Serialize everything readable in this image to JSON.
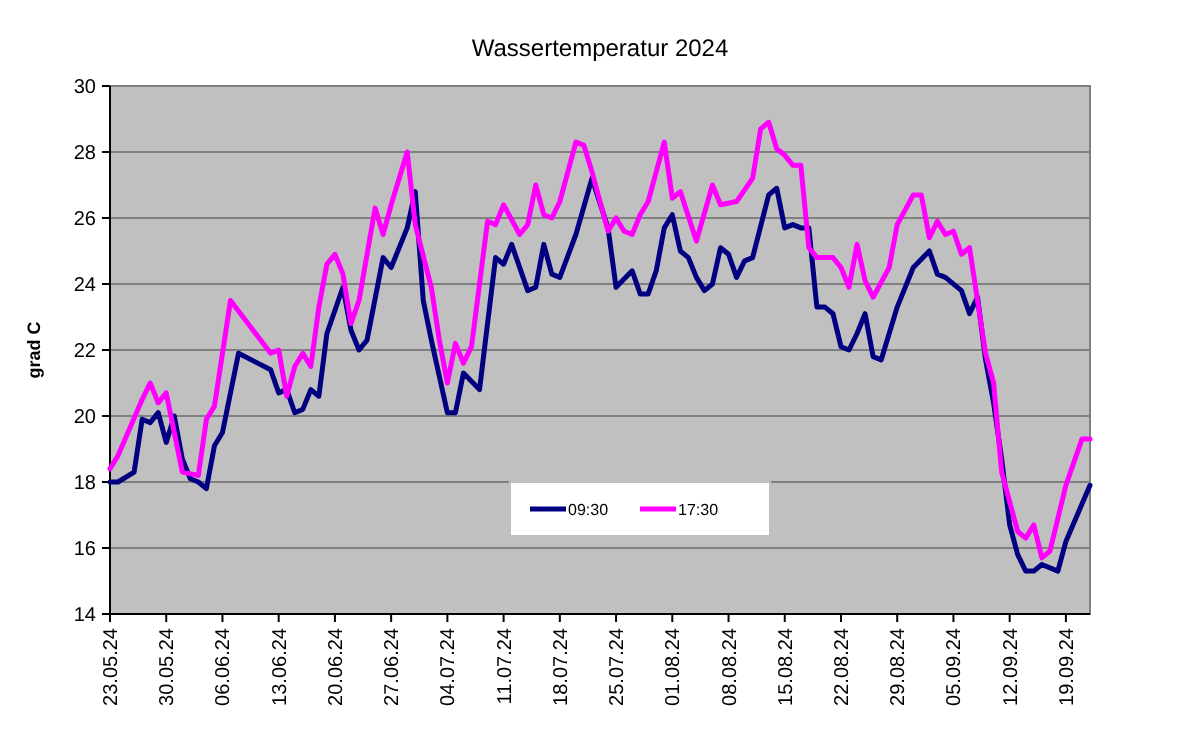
{
  "chart_data": {
    "type": "line",
    "title": "Wassertemperatur 2024",
    "ylabel": "grad C",
    "xlim": [
      "2024-05-23",
      "2024-09-22"
    ],
    "ylim": [
      14,
      30
    ],
    "yticks": [
      14,
      16,
      18,
      20,
      22,
      24,
      26,
      28,
      30
    ],
    "xticks": [
      {
        "value": "2024-05-23",
        "label": "23.05.24"
      },
      {
        "value": "2024-05-30",
        "label": "30.05.24"
      },
      {
        "value": "2024-06-06",
        "label": "06.06.24"
      },
      {
        "value": "2024-06-13",
        "label": "13.06.24"
      },
      {
        "value": "2024-06-20",
        "label": "20.06.24"
      },
      {
        "value": "2024-06-27",
        "label": "27.06.24"
      },
      {
        "value": "2024-07-04",
        "label": "04.07.24"
      },
      {
        "value": "2024-07-11",
        "label": "11.07.24"
      },
      {
        "value": "2024-07-18",
        "label": "18.07.24"
      },
      {
        "value": "2024-07-25",
        "label": "25.07.24"
      },
      {
        "value": "2024-08-01",
        "label": "01.08.24"
      },
      {
        "value": "2024-08-08",
        "label": "08.08.24"
      },
      {
        "value": "2024-08-15",
        "label": "15.08.24"
      },
      {
        "value": "2024-08-22",
        "label": "22.08.24"
      },
      {
        "value": "2024-08-29",
        "label": "29.08.24"
      },
      {
        "value": "2024-09-05",
        "label": "05.09.24"
      },
      {
        "value": "2024-09-12",
        "label": "12.09.24"
      },
      {
        "value": "2024-09-19",
        "label": "19.09.24"
      }
    ],
    "grid": "y",
    "legend": "bottom",
    "marker": "none",
    "line_style": "solid",
    "series": [
      {
        "name": "09:30",
        "color": "#000080",
        "x": [
          "2024-05-23",
          "2024-05-24",
          "2024-05-26",
          "2024-05-27",
          "2024-05-28",
          "2024-05-29",
          "2024-05-30",
          "2024-05-31",
          "2024-06-01",
          "2024-06-02",
          "2024-06-03",
          "2024-06-04",
          "2024-06-05",
          "2024-06-06",
          "2024-06-08",
          "2024-06-12",
          "2024-06-13",
          "2024-06-14",
          "2024-06-15",
          "2024-06-16",
          "2024-06-17",
          "2024-06-18",
          "2024-06-19",
          "2024-06-21",
          "2024-06-22",
          "2024-06-23",
          "2024-06-24",
          "2024-06-26",
          "2024-06-27",
          "2024-06-29",
          "2024-06-30",
          "2024-07-01",
          "2024-07-02",
          "2024-07-04",
          "2024-07-05",
          "2024-07-06",
          "2024-07-08",
          "2024-07-10",
          "2024-07-11",
          "2024-07-12",
          "2024-07-14",
          "2024-07-15",
          "2024-07-16",
          "2024-07-17",
          "2024-07-18",
          "2024-07-20",
          "2024-07-22",
          "2024-07-24",
          "2024-07-25",
          "2024-07-27",
          "2024-07-28",
          "2024-07-29",
          "2024-07-30",
          "2024-07-31",
          "2024-08-01",
          "2024-08-02",
          "2024-08-03",
          "2024-08-04",
          "2024-08-05",
          "2024-08-06",
          "2024-08-07",
          "2024-08-08",
          "2024-08-09",
          "2024-08-10",
          "2024-08-11",
          "2024-08-13",
          "2024-08-14",
          "2024-08-15",
          "2024-08-16",
          "2024-08-17",
          "2024-08-18",
          "2024-08-19",
          "2024-08-20",
          "2024-08-21",
          "2024-08-22",
          "2024-08-23",
          "2024-08-24",
          "2024-08-25",
          "2024-08-26",
          "2024-08-27",
          "2024-08-29",
          "2024-08-31",
          "2024-09-02",
          "2024-09-03",
          "2024-09-04",
          "2024-09-06",
          "2024-09-07",
          "2024-09-08",
          "2024-09-09",
          "2024-09-10",
          "2024-09-11",
          "2024-09-12",
          "2024-09-13",
          "2024-09-14",
          "2024-09-15",
          "2024-09-16",
          "2024-09-18",
          "2024-09-19",
          "2024-09-22"
        ],
        "values": [
          18.0,
          18.0,
          18.3,
          19.9,
          19.8,
          20.1,
          19.2,
          20.0,
          18.7,
          18.1,
          18.0,
          17.8,
          19.1,
          19.5,
          21.9,
          21.4,
          20.7,
          20.8,
          20.1,
          20.2,
          20.8,
          20.6,
          22.5,
          23.9,
          22.6,
          22.0,
          22.3,
          24.8,
          24.5,
          25.7,
          26.8,
          23.5,
          22.3,
          20.1,
          20.1,
          21.3,
          20.8,
          24.8,
          24.6,
          25.2,
          23.8,
          23.9,
          25.2,
          24.3,
          24.2,
          25.5,
          27.2,
          25.7,
          23.9,
          24.4,
          23.7,
          23.7,
          24.4,
          25.7,
          26.1,
          25.0,
          24.8,
          24.2,
          23.8,
          24.0,
          25.1,
          24.9,
          24.2,
          24.7,
          24.8,
          26.7,
          26.9,
          25.7,
          25.8,
          25.7,
          25.7,
          23.3,
          23.3,
          23.1,
          22.1,
          22.0,
          22.5,
          23.1,
          21.8,
          21.7,
          23.3,
          24.5,
          25.0,
          24.3,
          24.2,
          23.8,
          23.1,
          23.6,
          21.7,
          20.4,
          18.7,
          16.7,
          15.8,
          15.3,
          15.3,
          15.5,
          15.3,
          16.2,
          17.9
        ]
      },
      {
        "name": "17:30",
        "color": "#ff00ff",
        "x": [
          "2024-05-23",
          "2024-05-24",
          "2024-05-27",
          "2024-05-28",
          "2024-05-29",
          "2024-05-30",
          "2024-05-31",
          "2024-06-01",
          "2024-06-03",
          "2024-06-04",
          "2024-06-05",
          "2024-06-07",
          "2024-06-12",
          "2024-06-13",
          "2024-06-14",
          "2024-06-15",
          "2024-06-16",
          "2024-06-17",
          "2024-06-18",
          "2024-06-19",
          "2024-06-20",
          "2024-06-21",
          "2024-06-22",
          "2024-06-23",
          "2024-06-25",
          "2024-06-26",
          "2024-06-27",
          "2024-06-29",
          "2024-06-30",
          "2024-07-02",
          "2024-07-03",
          "2024-07-04",
          "2024-07-05",
          "2024-07-06",
          "2024-07-07",
          "2024-07-09",
          "2024-07-10",
          "2024-07-11",
          "2024-07-13",
          "2024-07-14",
          "2024-07-15",
          "2024-07-16",
          "2024-07-17",
          "2024-07-18",
          "2024-07-20",
          "2024-07-21",
          "2024-07-22",
          "2024-07-24",
          "2024-07-25",
          "2024-07-26",
          "2024-07-27",
          "2024-07-28",
          "2024-07-29",
          "2024-07-31",
          "2024-08-01",
          "2024-08-02",
          "2024-08-04",
          "2024-08-06",
          "2024-08-07",
          "2024-08-09",
          "2024-08-11",
          "2024-08-12",
          "2024-08-13",
          "2024-08-14",
          "2024-08-15",
          "2024-08-16",
          "2024-08-17",
          "2024-08-18",
          "2024-08-19",
          "2024-08-21",
          "2024-08-22",
          "2024-08-23",
          "2024-08-24",
          "2024-08-25",
          "2024-08-26",
          "2024-08-28",
          "2024-08-29",
          "2024-08-31",
          "2024-09-01",
          "2024-09-02",
          "2024-09-03",
          "2024-09-04",
          "2024-09-05",
          "2024-09-06",
          "2024-09-07",
          "2024-09-09",
          "2024-09-10",
          "2024-09-11",
          "2024-09-13",
          "2024-09-14",
          "2024-09-15",
          "2024-09-16",
          "2024-09-17",
          "2024-09-19",
          "2024-09-21",
          "2024-09-22"
        ],
        "values": [
          18.4,
          18.8,
          20.5,
          21.0,
          20.4,
          20.7,
          19.5,
          18.3,
          18.2,
          19.9,
          20.3,
          23.5,
          21.9,
          22.0,
          20.6,
          21.5,
          21.9,
          21.5,
          23.3,
          24.6,
          24.9,
          24.3,
          22.8,
          23.5,
          26.3,
          25.5,
          26.4,
          28.0,
          25.8,
          23.9,
          22.3,
          21.0,
          22.2,
          21.6,
          22.1,
          25.9,
          25.8,
          26.4,
          25.5,
          25.8,
          27.0,
          26.1,
          26.0,
          26.5,
          28.3,
          28.2,
          27.4,
          25.6,
          26.0,
          25.6,
          25.5,
          26.1,
          26.5,
          28.3,
          26.6,
          26.8,
          25.3,
          27.0,
          26.4,
          26.5,
          27.2,
          28.7,
          28.9,
          28.1,
          27.9,
          27.6,
          27.6,
          25.1,
          24.8,
          24.8,
          24.5,
          23.9,
          25.2,
          24.1,
          23.6,
          24.5,
          25.8,
          26.7,
          26.7,
          25.4,
          25.9,
          25.5,
          25.6,
          24.9,
          25.1,
          21.9,
          21.0,
          18.3,
          16.5,
          16.3,
          16.7,
          15.7,
          15.9,
          17.9,
          19.3,
          19.3
        ]
      }
    ]
  }
}
